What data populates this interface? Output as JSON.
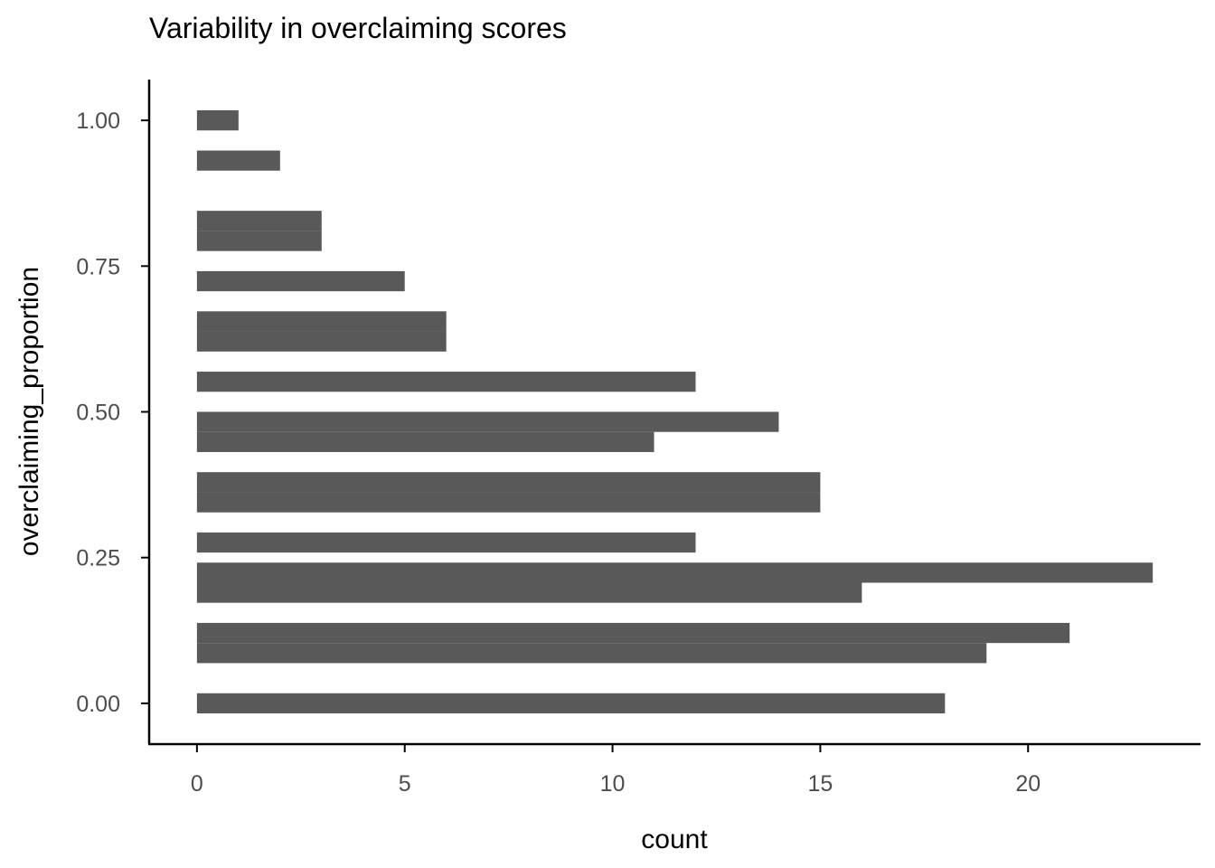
{
  "chart_data": {
    "type": "bar",
    "orientation": "horizontal",
    "title": "Variability in overclaiming scores",
    "xlabel": "count",
    "ylabel": "overclaiming_proportion",
    "xlim": [
      -1.15,
      24.15
    ],
    "ylim": [
      -0.07,
      1.07
    ],
    "x_ticks": [
      0,
      5,
      10,
      15,
      20
    ],
    "x_tick_labels": [
      "0",
      "5",
      "10",
      "15",
      "20"
    ],
    "y_ticks": [
      0,
      0.25,
      0.5,
      0.75,
      1
    ],
    "y_tick_labels": [
      "0.00",
      "0.25",
      "0.50",
      "0.75",
      "1.00"
    ],
    "grid": false,
    "bin_width": 0.0345,
    "bins": [
      {
        "y": 0.0,
        "count": 18
      },
      {
        "y": 0.0862,
        "count": 19
      },
      {
        "y": 0.1207,
        "count": 21
      },
      {
        "y": 0.1897,
        "count": 16
      },
      {
        "y": 0.2241,
        "count": 23
      },
      {
        "y": 0.2759,
        "count": 12
      },
      {
        "y": 0.3448,
        "count": 15
      },
      {
        "y": 0.3793,
        "count": 15
      },
      {
        "y": 0.4483,
        "count": 11
      },
      {
        "y": 0.4828,
        "count": 14
      },
      {
        "y": 0.5517,
        "count": 12
      },
      {
        "y": 0.6207,
        "count": 6
      },
      {
        "y": 0.6552,
        "count": 6
      },
      {
        "y": 0.7241,
        "count": 5
      },
      {
        "y": 0.7931,
        "count": 3
      },
      {
        "y": 0.8276,
        "count": 3
      },
      {
        "y": 0.931,
        "count": 2
      },
      {
        "y": 1.0,
        "count": 1
      }
    ],
    "bar_color": "#595959",
    "axis_color": "#000000",
    "tick_label_color": "#4d4d4d"
  }
}
